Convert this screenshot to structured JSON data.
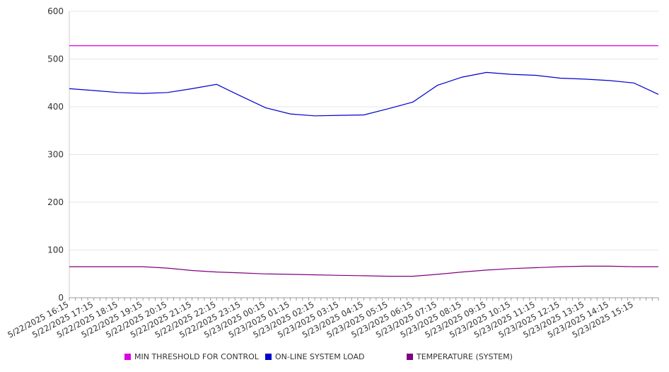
{
  "chart_data": {
    "type": "line",
    "ylim": [
      0,
      600
    ],
    "yticks": [
      0,
      100,
      200,
      300,
      400,
      500,
      600
    ],
    "xtick_labels": [
      "5/22/2025 16:15",
      "5/22/2025 17:15",
      "5/22/2025 18:15",
      "5/22/2025 19:15",
      "5/22/2025 20:15",
      "5/22/2025 21:15",
      "5/22/2025 22:15",
      "5/22/2025 23:15",
      "5/23/2025 00:15",
      "5/23/2025 01:15",
      "5/23/2025 02:15",
      "5/23/2025 03:15",
      "5/23/2025 04:15",
      "5/23/2025 05:15",
      "5/23/2025 06:15",
      "5/23/2025 07:15",
      "5/23/2025 08:15",
      "5/23/2025 09:15",
      "5/23/2025 10:15",
      "5/23/2025 11:15",
      "5/23/2025 12:15",
      "5/23/2025 13:15",
      "5/23/2025 14:15",
      "5/23/2025 15:15"
    ],
    "x_start": "5/22/2025 16:15",
    "x_end": "5/23/2025 16:15",
    "legend_position": "bottom",
    "grid": true,
    "series": [
      {
        "name": "MIN THRESHOLD FOR CONTROL",
        "color": "#dd00dd",
        "x": [
          "5/22/2025 16:15",
          "5/23/2025 16:15"
        ],
        "values": [
          528,
          528
        ]
      },
      {
        "name": "ON-LINE SYSTEM LOAD",
        "color": "#0000cc",
        "x": [
          "5/22/2025 16:15",
          "5/22/2025 17:15",
          "5/22/2025 18:15",
          "5/22/2025 19:15",
          "5/22/2025 20:15",
          "5/22/2025 21:15",
          "5/22/2025 22:15",
          "5/22/2025 23:15",
          "5/23/2025 00:15",
          "5/23/2025 01:15",
          "5/23/2025 02:15",
          "5/23/2025 03:15",
          "5/23/2025 04:15",
          "5/23/2025 05:15",
          "5/23/2025 06:15",
          "5/23/2025 07:15",
          "5/23/2025 08:15",
          "5/23/2025 09:15",
          "5/23/2025 10:15",
          "5/23/2025 11:15",
          "5/23/2025 12:15",
          "5/23/2025 13:15",
          "5/23/2025 14:15",
          "5/23/2025 15:15",
          "5/23/2025 16:15"
        ],
        "values": [
          438,
          434,
          430,
          428,
          430,
          438,
          447,
          422,
          398,
          385,
          381,
          382,
          383,
          396,
          410,
          445,
          462,
          472,
          468,
          466,
          460,
          458,
          455,
          450,
          426
        ]
      },
      {
        "name": "TEMPERATURE (SYSTEM)",
        "color": "#800080",
        "x": [
          "5/22/2025 16:15",
          "5/22/2025 17:15",
          "5/22/2025 18:15",
          "5/22/2025 19:15",
          "5/22/2025 20:15",
          "5/22/2025 21:15",
          "5/22/2025 22:15",
          "5/22/2025 23:15",
          "5/23/2025 00:15",
          "5/23/2025 01:15",
          "5/23/2025 02:15",
          "5/23/2025 03:15",
          "5/23/2025 04:15",
          "5/23/2025 05:15",
          "5/23/2025 06:15",
          "5/23/2025 07:15",
          "5/23/2025 08:15",
          "5/23/2025 09:15",
          "5/23/2025 10:15",
          "5/23/2025 11:15",
          "5/23/2025 12:15",
          "5/23/2025 13:15",
          "5/23/2025 14:15",
          "5/23/2025 15:15",
          "5/23/2025 16:15"
        ],
        "values": [
          65,
          65,
          65,
          65,
          62,
          57,
          54,
          52,
          50,
          49,
          48,
          47,
          46,
          45,
          45,
          49,
          54,
          58,
          61,
          63,
          65,
          66,
          66,
          65,
          65
        ]
      }
    ]
  }
}
